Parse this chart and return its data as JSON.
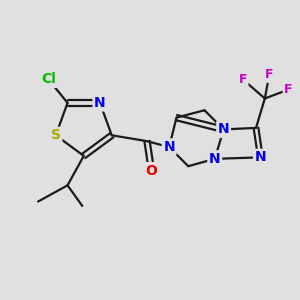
{
  "bg_color": "#e0e0e0",
  "bond_color": "#1a1a1a",
  "bond_width": 1.6,
  "atom_colors": {
    "Cl": "#00bb00",
    "S": "#aaaa00",
    "N": "#0000ee",
    "O": "#ee0000",
    "F": "#cc00cc",
    "C": "#1a1a1a"
  },
  "atom_fontsizes": {
    "Cl": 10,
    "S": 10,
    "N": 10,
    "O": 10,
    "F": 9,
    "C": 9
  }
}
